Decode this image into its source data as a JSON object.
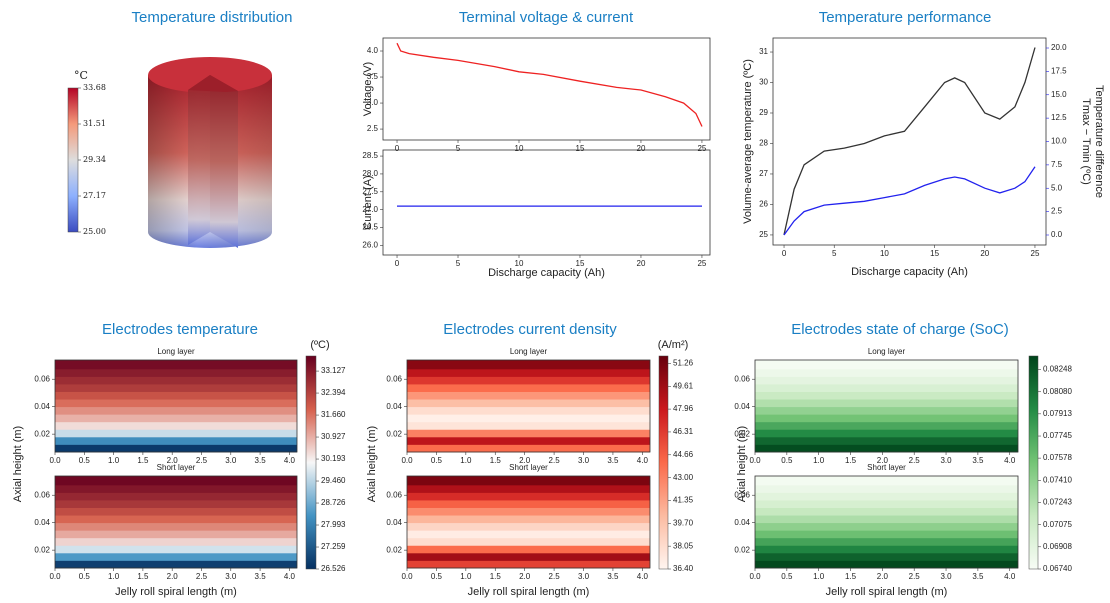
{
  "chart_data": [
    {
      "type": "colorbar-image",
      "title": "Temperature distribution",
      "unit": "°C",
      "colormap": "coolwarm",
      "clim": [
        25,
        33.68
      ],
      "cticks": [
        {
          "value": 25,
          "label": "25.00"
        },
        27.17,
        29.34,
        31.51,
        33.68
      ]
    },
    {
      "type": "line-stack",
      "title": "Terminal voltage & current",
      "xlabel": "Discharge capacity (Ah)",
      "xlim": [
        -1.15,
        25.66
      ],
      "xticks": [
        0,
        5,
        10,
        15,
        20,
        25
      ],
      "panels": [
        {
          "ylabel": "Voltage (V)",
          "ylim": [
            2.29,
            4.25
          ],
          "yticks": [
            2.5,
            {
              "value": 3,
              "label": "3.0"
            },
            3.5,
            {
              "value": 4,
              "label": "4.0"
            }
          ],
          "series": [
            {
              "color": "#ee2222",
              "x": [
                0,
                0.3,
                1,
                3,
                5,
                8,
                10,
                12,
                15,
                18,
                20,
                22,
                23.5,
                24.5,
                25
              ],
              "values": [
                4.15,
                4.0,
                3.95,
                3.88,
                3.82,
                3.7,
                3.6,
                3.55,
                3.42,
                3.3,
                3.25,
                3.12,
                3.0,
                2.8,
                2.55
              ]
            }
          ]
        },
        {
          "ylabel": "Current (A)",
          "ylim": [
            25.73,
            28.67
          ],
          "yticks": [
            {
              "value": 26,
              "label": "26.0"
            },
            26.5,
            {
              "value": 27,
              "label": "27.0"
            },
            27.5,
            {
              "value": 28,
              "label": "28.0"
            },
            28.5
          ],
          "series": [
            {
              "color": "#2222ee",
              "x": [
                0,
                25
              ],
              "values": [
                27.1,
                27.1
              ]
            }
          ]
        }
      ]
    },
    {
      "type": "line",
      "title": "Temperature performance",
      "xlabel": "Discharge capacity (Ah)",
      "ylabel": "Volume-average temperature (ºC)",
      "y2label": [
        "Temperature difference",
        "Tmax − Tmin (ºC)"
      ],
      "y2color": "#2222ee",
      "xlim": [
        -1.1,
        26.1
      ],
      "xticks": [
        0,
        5,
        10,
        15,
        20,
        25
      ],
      "ylim": [
        24.67,
        31.46
      ],
      "yticks": [
        25,
        26,
        27,
        28,
        29,
        30,
        31
      ],
      "y2lim": [
        -1.07,
        21.07
      ],
      "y2ticks": [
        {
          "value": 0,
          "label": "0.0"
        },
        2.5,
        {
          "value": 5,
          "label": "5.0"
        },
        7.5,
        {
          "value": 10,
          "label": "10.0"
        },
        12.5,
        {
          "value": 15,
          "label": "15.0"
        },
        17.5,
        {
          "value": 20,
          "label": "20.0"
        }
      ],
      "series": [
        {
          "color": "#333333",
          "x": [
            0,
            1,
            2,
            4,
            6,
            8,
            10,
            12,
            14,
            16,
            17,
            18,
            20,
            21.5,
            23,
            24,
            25
          ],
          "values": [
            25,
            26.5,
            27.3,
            27.75,
            27.85,
            28,
            28.25,
            28.4,
            29.2,
            30,
            30.15,
            30,
            29,
            28.8,
            29.2,
            30,
            31.15
          ]
        },
        {
          "color": "#2222ee",
          "axis": "y2",
          "x": [
            0,
            1,
            2,
            4,
            6,
            8,
            10,
            12,
            14,
            16,
            17,
            18,
            20,
            21.5,
            23,
            24,
            25
          ],
          "values": [
            0,
            1.5,
            2.5,
            3.2,
            3.4,
            3.6,
            4,
            4.4,
            5.3,
            6,
            6.2,
            6,
            5,
            4.5,
            5,
            5.7,
            7.3
          ]
        }
      ]
    },
    {
      "type": "heatmap",
      "title": "Electrodes temperature",
      "xlabel": "Jelly roll spiral length (m)",
      "ylabel": "Axial height (m)",
      "colormap": "RdBu_r",
      "unit": "(ºC)",
      "clim": [
        26.526,
        33.63
      ],
      "cticks": [
        26.526,
        27.259,
        27.993,
        28.726,
        {
          "value": 29.46,
          "label": "29.460"
        },
        30.193,
        30.927,
        {
          "value": 31.66,
          "label": "31.660"
        },
        32.394,
        33.127
      ],
      "xlim": [
        0,
        4.13
      ],
      "xticks": [
        {
          "value": 0,
          "label": "0.0"
        },
        0.5,
        {
          "value": 1,
          "label": "1.0"
        },
        1.5,
        {
          "value": 2,
          "label": "2.0"
        },
        2.5,
        {
          "value": 3,
          "label": "3.0"
        },
        3.5,
        {
          "value": 4,
          "label": "4.0"
        }
      ],
      "ylim": [
        0.007,
        0.074
      ],
      "yticks": [
        0.02,
        0.04,
        0.06
      ],
      "panels": [
        {
          "title": "Long layer",
          "ybins": [
            0.007,
            0.0125,
            0.018,
            0.0235,
            0.029,
            0.0345,
            0.04,
            0.0455,
            0.051,
            0.0565,
            0.062,
            0.0675,
            0.074
          ],
          "values": [
            26.7,
            28.2,
            29.6,
            30.4,
            30.9,
            31.3,
            31.7,
            32.1,
            32.5,
            32.8,
            33.1,
            33.4
          ]
        },
        {
          "title": "Short layer",
          "ybins": [
            0.007,
            0.0125,
            0.018,
            0.0235,
            0.029,
            0.0345,
            0.04,
            0.0455,
            0.051,
            0.0565,
            0.062,
            0.0675,
            0.074
          ],
          "values": [
            26.8,
            28.4,
            29.7,
            30.5,
            31.0,
            31.4,
            31.8,
            32.2,
            32.6,
            32.9,
            33.2,
            33.5
          ]
        }
      ]
    },
    {
      "type": "heatmap",
      "title": "Electrodes current density",
      "xlabel": "Jelly roll spiral length (m)",
      "ylabel": "Axial height (m)",
      "colormap": "Reds",
      "unit": "(A/m²)",
      "clim": [
        36.4,
        51.8
      ],
      "cticks": [
        {
          "value": 36.4,
          "label": "36.40"
        },
        38.05,
        {
          "value": 39.7,
          "label": "39.70"
        },
        41.35,
        {
          "value": 43,
          "label": "43.00"
        },
        44.66,
        46.31,
        47.96,
        49.61,
        51.26
      ],
      "xlim": [
        0,
        4.13
      ],
      "xticks": [
        {
          "value": 0,
          "label": "0.0"
        },
        0.5,
        {
          "value": 1,
          "label": "1.0"
        },
        1.5,
        {
          "value": 2,
          "label": "2.0"
        },
        2.5,
        {
          "value": 3,
          "label": "3.0"
        },
        3.5,
        {
          "value": 4,
          "label": "4.0"
        }
      ],
      "ylim": [
        0.007,
        0.074
      ],
      "yticks": [
        0.02,
        0.04,
        0.06
      ],
      "panels": [
        {
          "title": "Long layer",
          "ybins": [
            0.007,
            0.0125,
            0.018,
            0.0235,
            0.029,
            0.0345,
            0.04,
            0.0455,
            0.051,
            0.0565,
            0.062,
            0.0675,
            0.074
          ],
          "values": [
            44,
            48.5,
            43,
            37.5,
            36.8,
            38,
            40,
            42,
            44,
            46.5,
            48.5,
            50.5
          ]
        },
        {
          "title": "Short layer",
          "ybins": [
            0.007,
            0.0125,
            0.018,
            0.0235,
            0.029,
            0.0345,
            0.04,
            0.0455,
            0.051,
            0.0565,
            0.062,
            0.0675,
            0.074
          ],
          "values": [
            46,
            49.5,
            44,
            38,
            37,
            38.5,
            40.5,
            42.5,
            44.5,
            47,
            49,
            51
          ]
        }
      ]
    },
    {
      "type": "heatmap",
      "title": "Electrodes state of charge (SoC)",
      "xlabel": "Jelly roll spiral length (m)",
      "ylabel": "Axial height (m)",
      "colormap": "Greens",
      "clim": [
        0.0674,
        0.0835
      ],
      "cticks": [
        {
          "value": 0.0674,
          "label": "0.06740"
        },
        0.06908,
        0.07075,
        0.07243,
        {
          "value": 0.0741,
          "label": "0.07410"
        },
        0.07578,
        0.07745,
        0.07913,
        {
          "value": 0.0808,
          "label": "0.08080"
        },
        0.08248
      ],
      "xlim": [
        0,
        4.13
      ],
      "xticks": [
        {
          "value": 0,
          "label": "0.0"
        },
        0.5,
        {
          "value": 1,
          "label": "1.0"
        },
        1.5,
        {
          "value": 2,
          "label": "2.0"
        },
        2.5,
        {
          "value": 3,
          "label": "3.0"
        },
        3.5,
        {
          "value": 4,
          "label": "4.0"
        }
      ],
      "ylim": [
        0.007,
        0.074
      ],
      "yticks": [
        0.02,
        0.04,
        0.06
      ],
      "panels": [
        {
          "title": "Long layer",
          "ybins": [
            0.007,
            0.0125,
            0.018,
            0.0235,
            0.029,
            0.0345,
            0.04,
            0.0455,
            0.051,
            0.0565,
            0.062,
            0.0675,
            0.074
          ],
          "values": [
            0.083,
            0.0815,
            0.0795,
            0.0775,
            0.0755,
            0.074,
            0.0725,
            0.0712,
            0.07,
            0.069,
            0.0682,
            0.0676
          ]
        },
        {
          "title": "Short layer",
          "ybins": [
            0.007,
            0.0125,
            0.018,
            0.0235,
            0.029,
            0.0345,
            0.04,
            0.0455,
            0.051,
            0.0565,
            0.062,
            0.0675,
            0.074
          ],
          "values": [
            0.0832,
            0.0818,
            0.0798,
            0.0778,
            0.0758,
            0.0742,
            0.0727,
            0.0714,
            0.0702,
            0.0692,
            0.0684,
            0.0677
          ]
        }
      ]
    }
  ]
}
